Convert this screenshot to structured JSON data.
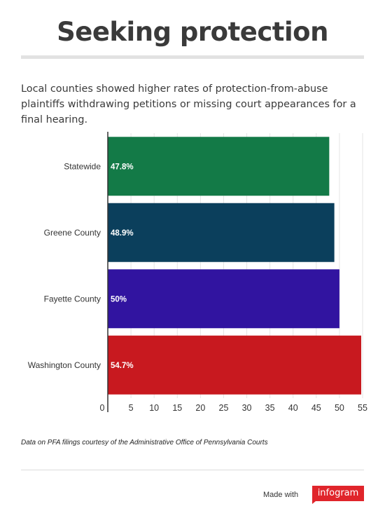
{
  "header": {
    "title": "Seeking protection",
    "subtitle": "Local counties showed higher rates of protection-from-abuse plaintiffs withdrawing petitions or missing court appearances for a final hearing."
  },
  "chart_data": {
    "type": "bar",
    "orientation": "horizontal",
    "categories": [
      "Statewide",
      "Greene County",
      "Fayette County",
      "Washington County"
    ],
    "values": [
      47.8,
      48.9,
      50,
      54.7
    ],
    "data_labels": [
      "47.8%",
      "48.9%",
      "50%",
      "54.7%"
    ],
    "bar_colors": [
      "#137a47",
      "#0b3f5c",
      "#3114a0",
      "#c8191f"
    ],
    "xlim": [
      0,
      55
    ],
    "x_ticks": [
      0,
      5,
      10,
      15,
      20,
      25,
      30,
      35,
      40,
      45,
      50,
      55
    ],
    "grid": true,
    "title": "",
    "xlabel": "",
    "ylabel": ""
  },
  "footer": {
    "source": "Data on PFA filings courtesy of the Administrative Office of Pennsylvania Courts",
    "made_with": "Made with",
    "brand": "infogram"
  }
}
